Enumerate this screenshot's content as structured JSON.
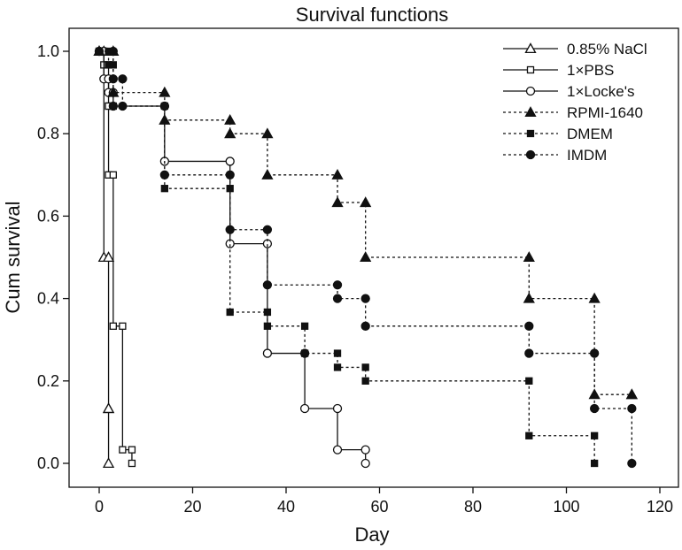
{
  "chart_data": {
    "type": "line",
    "subtype": "kaplan-meier step survival plot",
    "title": "Survival functions",
    "xlabel": "Day",
    "ylabel": "Cum survival",
    "xlim": [
      -5,
      125
    ],
    "ylim": [
      -0.05,
      1.05
    ],
    "xticks": [
      0,
      20,
      40,
      60,
      80,
      100,
      120
    ],
    "yticks": [
      0.0,
      0.2,
      0.4,
      0.6,
      0.8,
      1.0
    ],
    "ytick_labels": [
      "0.0",
      "0.2",
      "0.4",
      "0.6",
      "0.8",
      "1.0"
    ],
    "grid": false,
    "legend_position": "top-right",
    "series": [
      {
        "name": "0.85% NaCl",
        "marker": "triangle-open",
        "line": "solid",
        "points": [
          [
            0,
            1.0
          ],
          [
            1,
            0.5
          ],
          [
            2,
            0.133
          ],
          [
            2,
            0.0
          ]
        ]
      },
      {
        "name": "1×PBS",
        "marker": "square-open",
        "line": "solid",
        "points": [
          [
            0,
            1.0
          ],
          [
            1,
            0.967
          ],
          [
            2,
            0.867
          ],
          [
            2,
            0.7
          ],
          [
            3,
            0.333
          ],
          [
            5,
            0.033
          ],
          [
            7,
            0.0
          ]
        ]
      },
      {
        "name": "1×Locke's",
        "marker": "circle-open",
        "line": "solid",
        "points": [
          [
            0,
            1.0
          ],
          [
            1,
            0.933
          ],
          [
            2,
            0.9
          ],
          [
            3,
            0.867
          ],
          [
            14,
            0.733
          ],
          [
            28,
            0.533
          ],
          [
            36,
            0.267
          ],
          [
            44,
            0.133
          ],
          [
            51,
            0.033
          ],
          [
            57,
            0.0
          ]
        ]
      },
      {
        "name": "RPMI-1640",
        "marker": "triangle-filled",
        "line": "dotted",
        "points": [
          [
            0,
            1.0
          ],
          [
            3,
            0.9
          ],
          [
            14,
            0.833
          ],
          [
            28,
            0.8
          ],
          [
            36,
            0.7
          ],
          [
            51,
            0.633
          ],
          [
            57,
            0.5
          ],
          [
            92,
            0.4
          ],
          [
            106,
            0.167
          ],
          [
            114,
            0.167
          ]
        ]
      },
      {
        "name": "DMEM",
        "marker": "square-filled",
        "line": "dotted",
        "points": [
          [
            0,
            1.0
          ],
          [
            2,
            0.967
          ],
          [
            3,
            0.867
          ],
          [
            14,
            0.667
          ],
          [
            28,
            0.367
          ],
          [
            36,
            0.333
          ],
          [
            44,
            0.267
          ],
          [
            51,
            0.233
          ],
          [
            57,
            0.2
          ],
          [
            92,
            0.067
          ],
          [
            106,
            0.0
          ]
        ]
      },
      {
        "name": "IMDM",
        "marker": "circle-filled",
        "line": "dotted",
        "points": [
          [
            0,
            1.0
          ],
          [
            3,
            0.933
          ],
          [
            5,
            0.867
          ],
          [
            14,
            0.7
          ],
          [
            28,
            0.567
          ],
          [
            36,
            0.433
          ],
          [
            51,
            0.4
          ],
          [
            57,
            0.333
          ],
          [
            92,
            0.267
          ],
          [
            106,
            0.133
          ],
          [
            114,
            0.0
          ]
        ]
      }
    ]
  }
}
